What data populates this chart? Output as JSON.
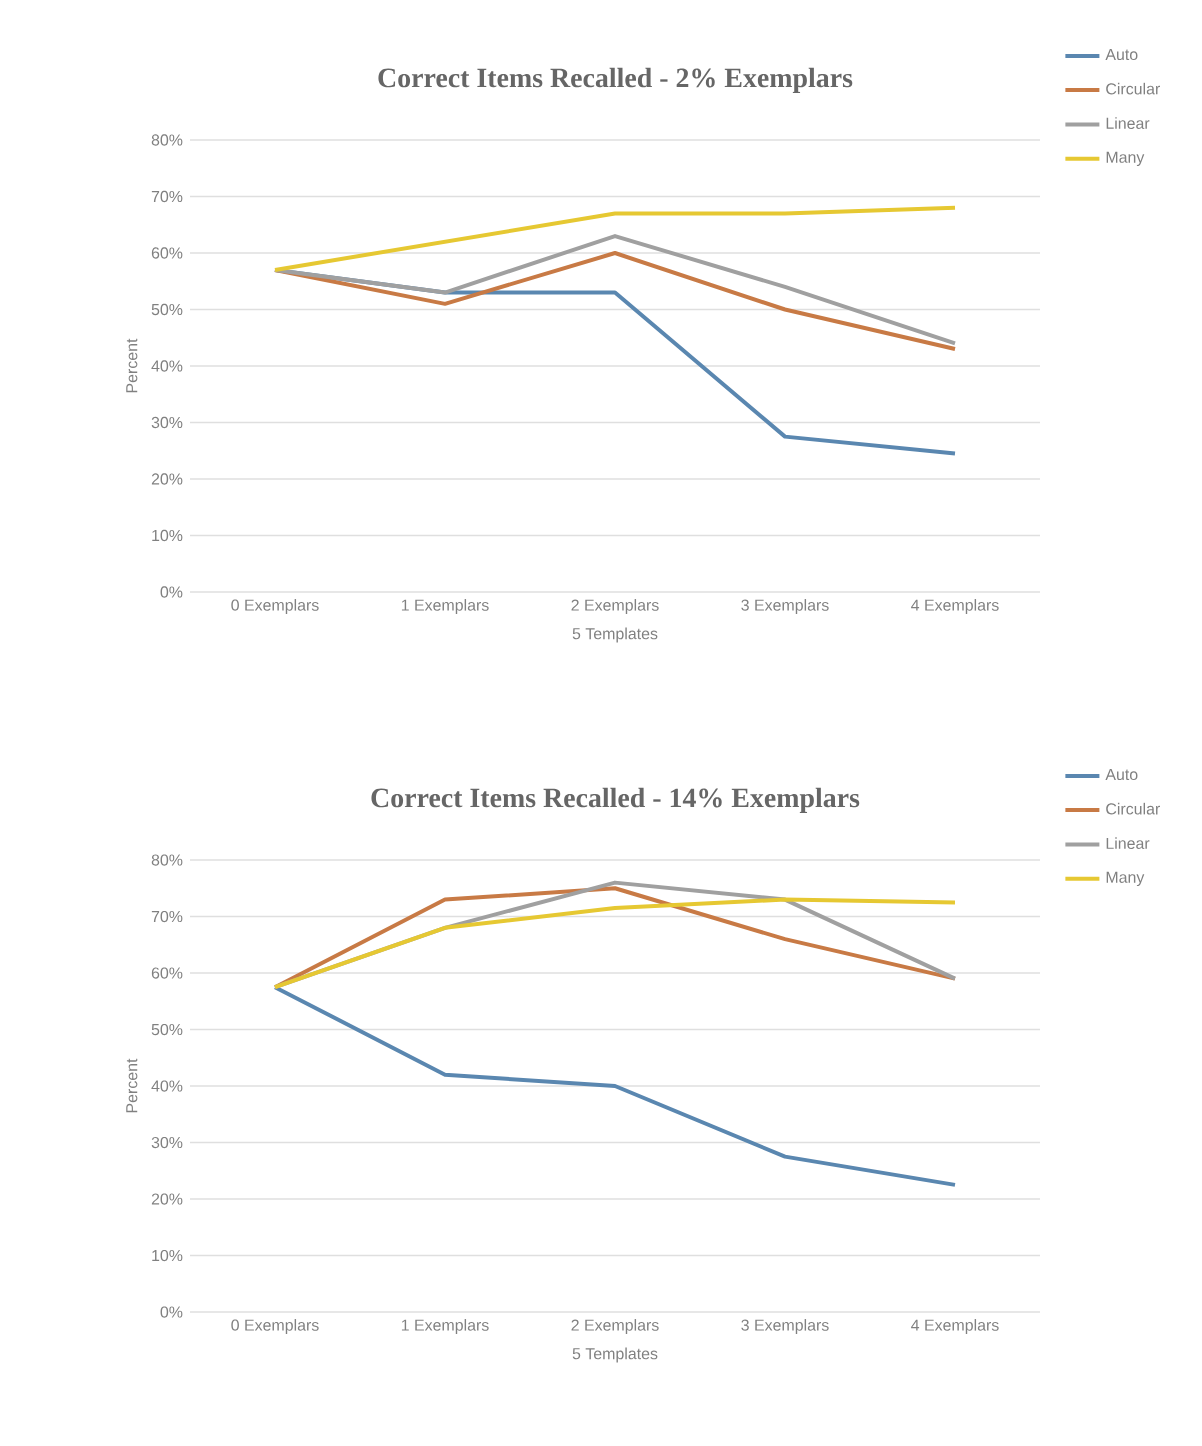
{
  "chart_data": [
    {
      "type": "line",
      "title": "Correct Items Recalled - 2% Exemplars",
      "xlabel": "5 Templates",
      "ylabel": "Percent",
      "categories": [
        "0 Exemplars",
        "1 Exemplars",
        "2 Exemplars",
        "3 Exemplars",
        "4 Exemplars"
      ],
      "series": [
        {
          "name": "Auto",
          "color": "#5a87b0",
          "values": [
            57,
            53,
            53,
            27.5,
            24.5
          ]
        },
        {
          "name": "Circular",
          "color": "#c87a45",
          "values": [
            57,
            51,
            60,
            50,
            43
          ]
        },
        {
          "name": "Linear",
          "color": "#a0a0a0",
          "values": [
            57,
            53,
            63,
            54,
            44
          ]
        },
        {
          "name": "Many",
          "color": "#e6c832",
          "values": [
            57,
            62,
            67,
            67,
            68
          ]
        }
      ],
      "ylim": [
        0,
        80
      ],
      "yticks": [
        {
          "value": 0,
          "label": "0%"
        },
        {
          "value": 10,
          "label": "10%"
        },
        {
          "value": 20,
          "label": "20%"
        },
        {
          "value": 30,
          "label": "30%"
        },
        {
          "value": 40,
          "label": "40%"
        },
        {
          "value": 50,
          "label": "50%"
        },
        {
          "value": 60,
          "label": "60%"
        },
        {
          "value": 70,
          "label": "70%"
        },
        {
          "value": 80,
          "label": "80%"
        }
      ],
      "grid": "y",
      "legend": "top right",
      "marker": "none",
      "line_style": "solid"
    },
    {
      "type": "line",
      "title": "Correct Items Recalled - 14% Exemplars",
      "xlabel": "5 Templates",
      "ylabel": "Percent",
      "categories": [
        "0 Exemplars",
        "1 Exemplars",
        "2 Exemplars",
        "3 Exemplars",
        "4 Exemplars"
      ],
      "series": [
        {
          "name": "Auto",
          "color": "#5a87b0",
          "values": [
            57.5,
            42,
            40,
            27.5,
            22.5
          ]
        },
        {
          "name": "Circular",
          "color": "#c87a45",
          "values": [
            57.5,
            73,
            75,
            66,
            59
          ]
        },
        {
          "name": "Linear",
          "color": "#a0a0a0",
          "values": [
            57.5,
            68,
            76,
            73,
            59
          ]
        },
        {
          "name": "Many",
          "color": "#e6c832",
          "values": [
            57.5,
            68,
            71.5,
            73,
            72.5
          ]
        }
      ],
      "ylim": [
        0,
        80
      ],
      "yticks": [
        {
          "value": 0,
          "label": "0%"
        },
        {
          "value": 10,
          "label": "10%"
        },
        {
          "value": 20,
          "label": "20%"
        },
        {
          "value": 30,
          "label": "30%"
        },
        {
          "value": 40,
          "label": "40%"
        },
        {
          "value": 50,
          "label": "50%"
        },
        {
          "value": 60,
          "label": "60%"
        },
        {
          "value": 70,
          "label": "70%"
        },
        {
          "value": 80,
          "label": "80%"
        }
      ],
      "grid": "y",
      "legend": "top right",
      "marker": "none",
      "line_style": "solid"
    }
  ]
}
